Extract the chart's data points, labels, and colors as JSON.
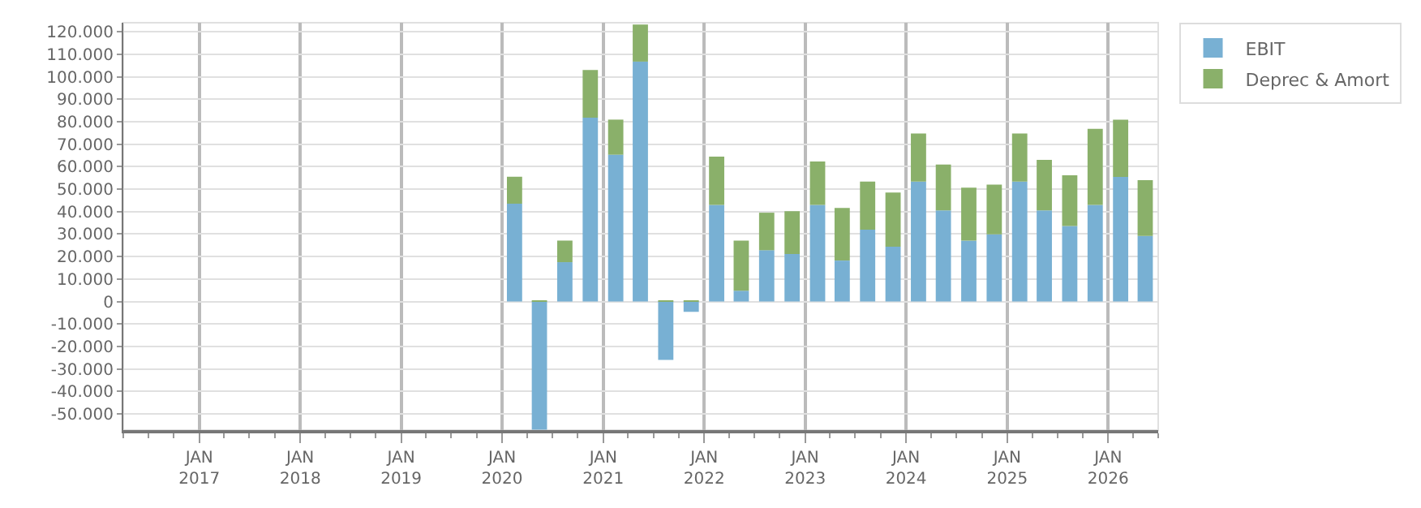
{
  "chart_data": {
    "type": "bar",
    "stacked": true,
    "x": [
      "2020-02-15",
      "2020-05-15",
      "2020-08-15",
      "2020-11-15",
      "2021-02-15",
      "2021-05-15",
      "2021-08-15",
      "2021-11-15",
      "2022-02-15",
      "2022-05-15",
      "2022-08-15",
      "2022-11-15",
      "2023-02-15",
      "2023-05-15",
      "2023-08-15",
      "2023-11-15",
      "2024-02-15",
      "2024-05-15",
      "2024-08-15",
      "2024-11-15",
      "2025-02-15",
      "2025-05-15",
      "2025-08-15",
      "2025-11-15",
      "2026-02-15",
      "2026-05-15"
    ],
    "series": [
      {
        "name": "EBIT",
        "color": "#78b0d3",
        "values": [
          43500,
          -57000,
          17500,
          81800,
          65300,
          106700,
          -26000,
          -4600,
          43000,
          4800,
          22800,
          21100,
          43000,
          18200,
          32000,
          24400,
          53300,
          40500,
          27100,
          29900,
          53300,
          40500,
          33600,
          43000,
          55400,
          29200
        ]
      },
      {
        "name": "Deprec & Amort",
        "color": "#8ab06a",
        "values": [
          12000,
          500,
          9600,
          21200,
          15600,
          16500,
          500,
          500,
          21400,
          22300,
          16700,
          19100,
          19300,
          23400,
          21300,
          24100,
          21400,
          20400,
          23500,
          22100,
          21400,
          22500,
          22500,
          33800,
          25500,
          24800
        ]
      }
    ],
    "xlim": [
      "2016-04-01",
      "2026-07-01"
    ],
    "xticks": [
      {
        "value": "2017-01-01",
        "label": "JAN\n2017"
      },
      {
        "value": "2018-01-01",
        "label": "JAN\n2018"
      },
      {
        "value": "2019-01-01",
        "label": "JAN\n2019"
      },
      {
        "value": "2020-01-01",
        "label": "JAN\n2020"
      },
      {
        "value": "2021-01-01",
        "label": "JAN\n2021"
      },
      {
        "value": "2022-01-01",
        "label": "JAN\n2022"
      },
      {
        "value": "2023-01-01",
        "label": "JAN\n2023"
      },
      {
        "value": "2024-01-01",
        "label": "JAN\n2024"
      },
      {
        "value": "2025-01-01",
        "label": "JAN\n2025"
      },
      {
        "value": "2026-01-01",
        "label": "JAN\n2026"
      }
    ],
    "ylim": [
      -57200,
      124000
    ],
    "yticks": [
      {
        "value": -50000,
        "label": "-50.000"
      },
      {
        "value": -40000,
        "label": "-40.000"
      },
      {
        "value": -30000,
        "label": "-30.000"
      },
      {
        "value": -20000,
        "label": "-20.000"
      },
      {
        "value": -10000,
        "label": "-10.000"
      },
      {
        "value": 0,
        "label": "0"
      },
      {
        "value": 10000,
        "label": "10.000"
      },
      {
        "value": 20000,
        "label": "20.000"
      },
      {
        "value": 30000,
        "label": "30.000"
      },
      {
        "value": 40000,
        "label": "40.000"
      },
      {
        "value": 50000,
        "label": "50.000"
      },
      {
        "value": 60000,
        "label": "60.000"
      },
      {
        "value": 70000,
        "label": "70.000"
      },
      {
        "value": 80000,
        "label": "80.000"
      },
      {
        "value": 90000,
        "label": "90.000"
      },
      {
        "value": 100000,
        "label": "100.000"
      },
      {
        "value": 110000,
        "label": "110.000"
      },
      {
        "value": 120000,
        "label": "120.000"
      }
    ],
    "grid": true,
    "legend": "top right"
  }
}
